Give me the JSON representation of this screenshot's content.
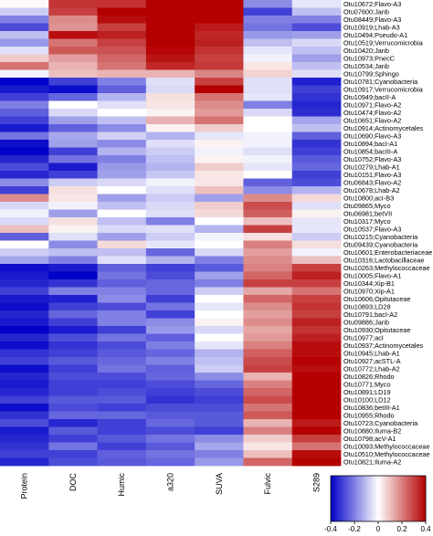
{
  "chart_data": {
    "type": "heatmap",
    "columns": [
      "Protein",
      "DOC",
      "Humic",
      "a320",
      "SUVA",
      "Fulvic",
      "S289"
    ],
    "rows": [
      "Otu10672;Flavo-A3",
      "Otu07600;Janb",
      "Otu08449;Flavo-A3",
      "Otu10919;Lhab-A3",
      "Otu10494;Pseudo-A1",
      "Otu10519;Verrucomicrobia",
      "Otu10420;Janb",
      "Otu10973;PnecC",
      "Otu10534;Janb",
      "Otu10799;Sphingo",
      "Otu10781;Cyanobacteria",
      "Otu10917;Verrucomicrobia",
      "Otu10949;bacII-A",
      "Otu10971;Flavo-A2",
      "Otu10474;Flavo-A2",
      "Otu10651;Flavo-A2",
      "Otu10914;Actinomycetales",
      "Otu10690;Flavo-A3",
      "Otu10894;bacI-A1",
      "Otu10854;bacIII-A",
      "Otu10752;Flavo-A3",
      "Otu10279;Lhab-A1",
      "Otu10151;Flavo-A3",
      "Otu06843;Flavo-A2",
      "Otu10678;Lhab-A2",
      "Otu10800;acI-B3",
      "Otu09865;Myco",
      "Otu06981;betVII",
      "Otu10317;Myco",
      "Otu10537;Flavo-A3",
      "Otu10215;Cyanobacteria",
      "Otu09439;Cyanobacteria",
      "Otu10601;Enterobacteriaceae",
      "Otu10316;Lactobacillaceae",
      "Otu10263;Methylococcaceae",
      "Otu10005;Flavo-A1",
      "Otu10344;Xip-B1",
      "Otu10970;Xip-A1",
      "Otu10606;Opitutaceae",
      "Otu10893;LD28",
      "Otu10791;bacI-A2",
      "Otu09886;Janb",
      "Otu10930;Opitutaceae",
      "Otu10977;acI",
      "Otu10937;Actinomycetales",
      "Otu10945;Lhab-A1",
      "Otu10927;acSTL-A",
      "Otu10772;Lhab-A2",
      "Otu10826;Rhodo",
      "Otu10771;Myco",
      "Otu10891;LD19",
      "Otu10100;LD12",
      "Otu10836;betIII-A1",
      "Otu10955;Rhodo",
      "Otu10723;Cyanobacteria",
      "Otu10880;Iluma-B2",
      "Otu10798;acV-A1",
      "Otu10093;Methylococcaceae",
      "Otu10510;Methylococcaceae",
      "Otu10821;Iluma-A2"
    ],
    "values": [
      [
        0.01,
        0.32,
        0.32,
        0.45,
        0.44,
        -0.18,
        -0.04
      ],
      [
        -0.08,
        0.3,
        0.4,
        0.45,
        0.4,
        -0.3,
        -0.1
      ],
      [
        -0.2,
        0.18,
        0.38,
        0.45,
        0.4,
        -0.2,
        -0.2
      ],
      [
        -0.28,
        0.17,
        0.3,
        0.43,
        0.36,
        -0.22,
        -0.28
      ],
      [
        -0.1,
        0.38,
        0.35,
        0.44,
        0.34,
        -0.16,
        -0.15
      ],
      [
        -0.16,
        0.22,
        0.3,
        0.42,
        0.35,
        -0.1,
        -0.06
      ],
      [
        -0.05,
        0.26,
        0.27,
        0.39,
        0.32,
        -0.04,
        -0.1
      ],
      [
        0.08,
        0.15,
        0.24,
        0.37,
        0.3,
        -0.02,
        -0.15
      ],
      [
        0.22,
        0.12,
        0.22,
        0.34,
        0.31,
        0.04,
        -0.1
      ],
      [
        -0.02,
        0.1,
        0.12,
        0.12,
        0.19,
        0.07,
        -0.05
      ],
      [
        -0.4,
        -0.3,
        -0.2,
        -0.05,
        0.3,
        -0.05,
        -0.35
      ],
      [
        -0.36,
        -0.38,
        -0.25,
        -0.06,
        0.4,
        -0.05,
        -0.3
      ],
      [
        -0.3,
        -0.24,
        -0.12,
        0.05,
        0.22,
        -0.04,
        -0.32
      ],
      [
        -0.2,
        0.0,
        -0.05,
        0.04,
        0.18,
        -0.2,
        -0.34
      ],
      [
        -0.25,
        -0.06,
        0.0,
        0.02,
        0.16,
        -0.06,
        -0.33
      ],
      [
        -0.3,
        -0.15,
        -0.1,
        0.12,
        0.22,
        0.0,
        -0.14
      ],
      [
        -0.36,
        -0.25,
        -0.18,
        0.02,
        0.08,
        0.0,
        -0.1
      ],
      [
        -0.22,
        -0.14,
        -0.07,
        -0.12,
        -0.04,
        -0.02,
        -0.25
      ],
      [
        -0.38,
        -0.15,
        -0.18,
        -0.05,
        0.02,
        -0.02,
        -0.32
      ],
      [
        -0.4,
        -0.3,
        -0.12,
        -0.08,
        -0.02,
        -0.05,
        -0.3
      ],
      [
        -0.34,
        -0.22,
        -0.2,
        -0.1,
        0.02,
        -0.02,
        -0.26
      ],
      [
        -0.28,
        -0.36,
        -0.16,
        -0.12,
        0.08,
        -0.04,
        -0.24
      ],
      [
        -0.34,
        -0.3,
        -0.15,
        -0.09,
        0.04,
        0.0,
        -0.3
      ],
      [
        -0.18,
        -0.08,
        -0.06,
        -0.02,
        0.04,
        -0.25,
        -0.28
      ],
      [
        -0.3,
        0.05,
        0.0,
        -0.05,
        0.1,
        -0.18,
        -0.12
      ],
      [
        0.18,
        0.04,
        -0.15,
        -0.08,
        -0.15,
        0.18,
        0.06
      ],
      [
        -0.06,
        -0.02,
        -0.1,
        -0.06,
        0.08,
        0.28,
        -0.05
      ],
      [
        -0.02,
        -0.15,
        0.0,
        -0.05,
        0.06,
        0.25,
        0.02
      ],
      [
        -0.06,
        0.05,
        -0.1,
        -0.2,
        0.0,
        0.1,
        -0.04
      ],
      [
        0.1,
        0.02,
        -0.06,
        -0.05,
        -0.12,
        0.3,
        -0.04
      ],
      [
        -0.25,
        -0.05,
        -0.15,
        -0.08,
        -0.02,
        0.05,
        -0.08
      ],
      [
        0.0,
        -0.18,
        0.06,
        -0.04,
        0.0,
        0.2,
        0.05
      ],
      [
        -0.08,
        -0.1,
        -0.1,
        -0.24,
        -0.06,
        0.15,
        -0.02
      ],
      [
        -0.14,
        -0.2,
        -0.05,
        -0.12,
        -0.2,
        0.18,
        0.1
      ],
      [
        -0.38,
        -0.36,
        -0.25,
        -0.3,
        -0.26,
        0.2,
        0.3
      ],
      [
        -0.36,
        -0.4,
        -0.22,
        -0.28,
        -0.15,
        0.24,
        0.35
      ],
      [
        -0.34,
        -0.32,
        -0.25,
        -0.24,
        -0.2,
        0.3,
        0.3
      ],
      [
        -0.3,
        -0.2,
        -0.2,
        -0.24,
        -0.08,
        0.14,
        0.22
      ],
      [
        -0.36,
        -0.35,
        -0.18,
        -0.3,
        0.0,
        0.24,
        0.3
      ],
      [
        -0.38,
        -0.3,
        -0.28,
        -0.22,
        -0.04,
        0.18,
        0.32
      ],
      [
        -0.34,
        -0.24,
        -0.2,
        -0.3,
        0.0,
        0.15,
        0.3
      ],
      [
        -0.36,
        -0.3,
        -0.2,
        -0.18,
        0.02,
        0.18,
        0.35
      ],
      [
        -0.4,
        -0.36,
        -0.3,
        -0.16,
        -0.06,
        0.14,
        0.32
      ],
      [
        -0.34,
        -0.28,
        -0.22,
        -0.25,
        0.0,
        0.16,
        0.35
      ],
      [
        -0.38,
        -0.32,
        -0.28,
        -0.2,
        -0.04,
        0.2,
        0.38
      ],
      [
        -0.32,
        -0.3,
        -0.26,
        -0.24,
        -0.12,
        0.25,
        0.38
      ],
      [
        -0.3,
        -0.26,
        -0.24,
        -0.2,
        -0.1,
        0.28,
        0.4
      ],
      [
        -0.38,
        -0.3,
        -0.22,
        -0.25,
        -0.08,
        0.3,
        0.38
      ],
      [
        -0.34,
        -0.28,
        -0.28,
        -0.24,
        -0.18,
        0.12,
        0.4
      ],
      [
        -0.36,
        -0.3,
        -0.3,
        -0.28,
        -0.24,
        0.2,
        0.42
      ],
      [
        -0.34,
        -0.3,
        -0.28,
        -0.3,
        -0.28,
        0.24,
        0.44
      ],
      [
        -0.3,
        -0.26,
        -0.26,
        -0.32,
        -0.3,
        0.28,
        0.44
      ],
      [
        -0.38,
        -0.28,
        -0.3,
        -0.28,
        -0.28,
        0.22,
        0.42
      ],
      [
        -0.32,
        -0.24,
        -0.24,
        -0.26,
        -0.26,
        0.26,
        0.44
      ],
      [
        -0.28,
        -0.34,
        -0.3,
        -0.24,
        -0.26,
        0.12,
        0.36
      ],
      [
        -0.36,
        -0.26,
        -0.3,
        -0.28,
        -0.3,
        0.2,
        0.4
      ],
      [
        -0.34,
        -0.3,
        -0.26,
        -0.22,
        -0.18,
        0.08,
        0.3
      ],
      [
        -0.32,
        -0.22,
        -0.3,
        -0.26,
        -0.14,
        0.04,
        0.22
      ],
      [
        -0.3,
        -0.3,
        -0.25,
        -0.22,
        -0.2,
        0.1,
        0.38
      ],
      [
        -0.34,
        -0.28,
        -0.26,
        -0.24,
        -0.16,
        0.24,
        0.42
      ]
    ],
    "color_range": [
      -0.4,
      0.4
    ],
    "colorbar_ticks": [
      "-0.4",
      "-0.2",
      "0",
      "0.2",
      "0.4"
    ],
    "colors": {
      "low": "#0000c8",
      "mid": "#ffffff",
      "high": "#b40000"
    },
    "title": "",
    "xlabel": "",
    "ylabel": ""
  }
}
